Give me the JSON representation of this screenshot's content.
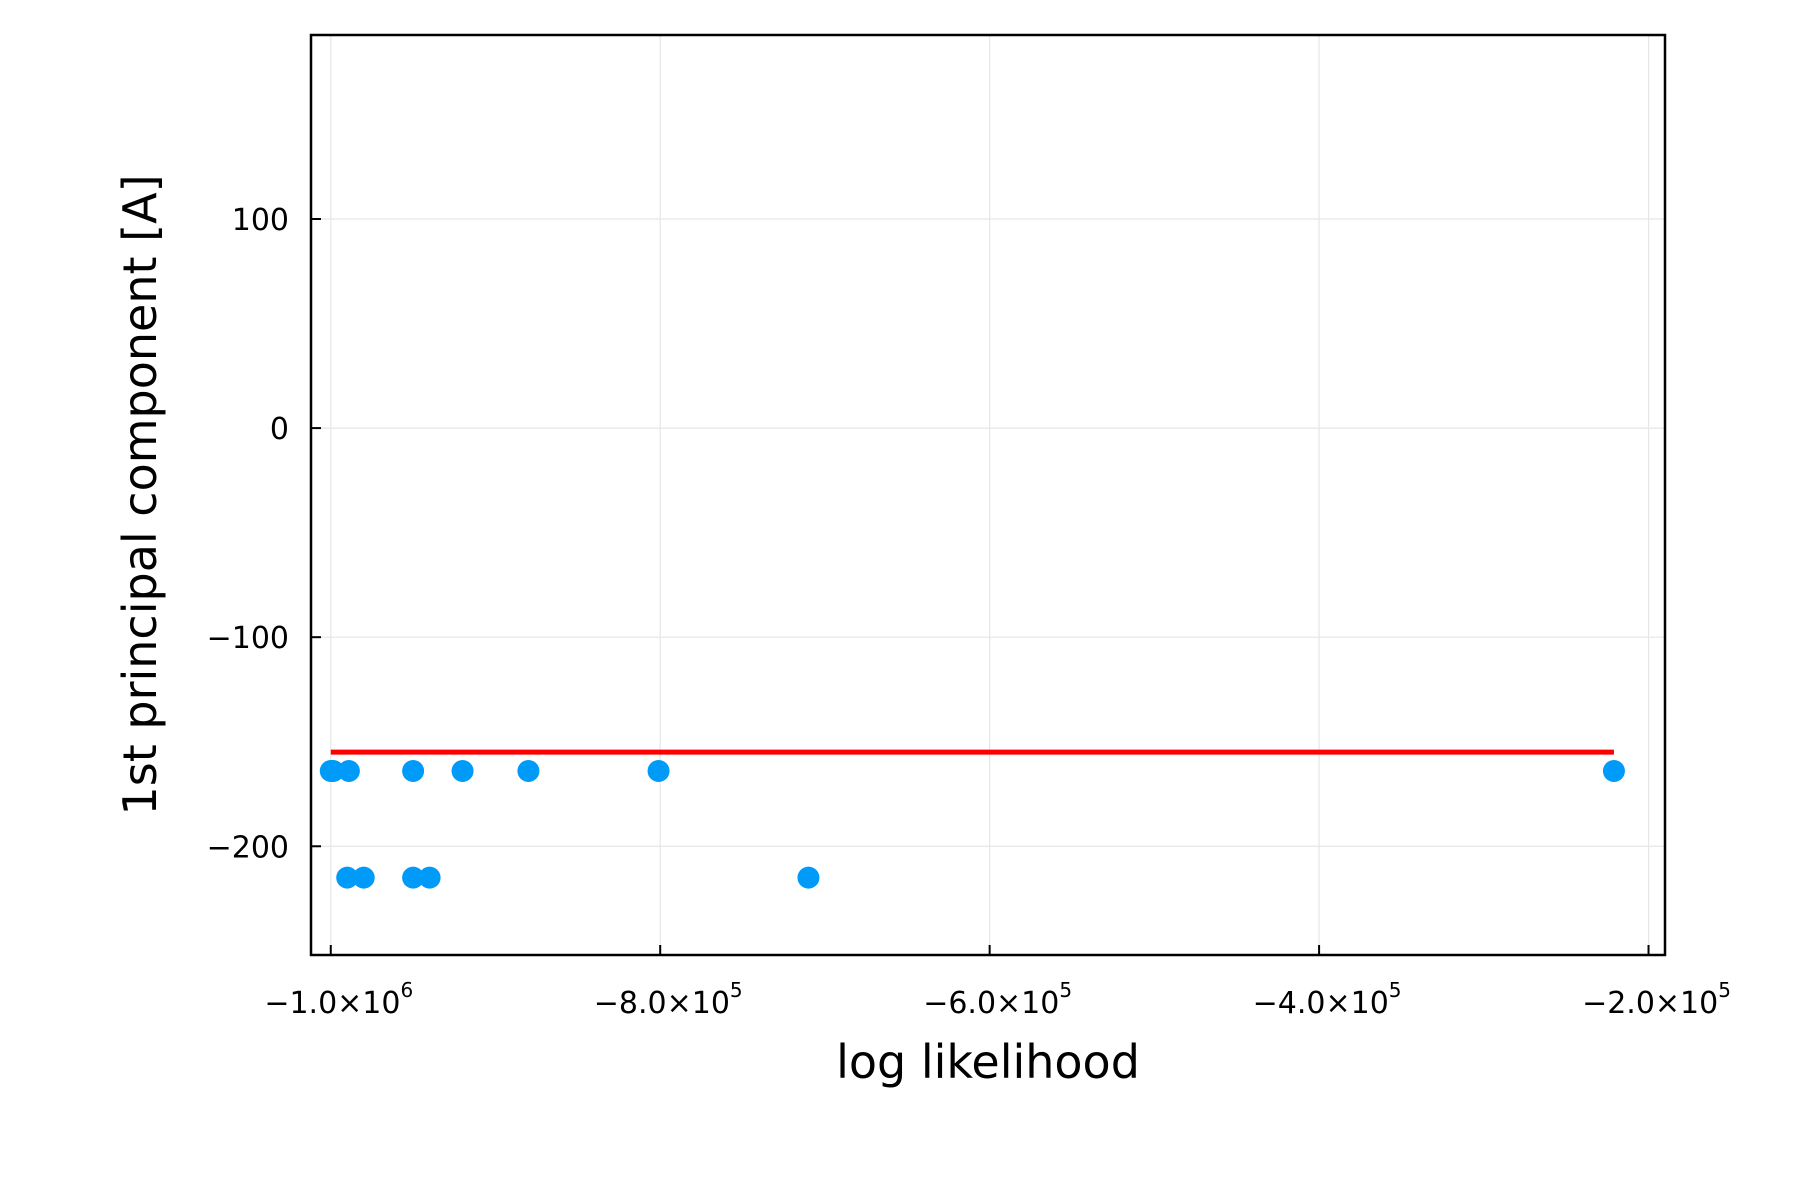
{
  "chart_data": {
    "type": "scatter",
    "title": "",
    "xlabel": "log likelihood",
    "ylabel": "1st principal component [A]",
    "xlim": [
      -1012000,
      -190000
    ],
    "ylim": [
      -252,
      188
    ],
    "grid": true,
    "legend": "none",
    "x_ticks": [
      {
        "value": -1000000,
        "mantissa": "−1.0×10",
        "exponent": "6"
      },
      {
        "value": -800000,
        "mantissa": "−8.0×10",
        "exponent": "5"
      },
      {
        "value": -600000,
        "mantissa": "−6.0×10",
        "exponent": "5"
      },
      {
        "value": -400000,
        "mantissa": "−4.0×10",
        "exponent": "5"
      },
      {
        "value": -200000,
        "mantissa": "−2.0×10",
        "exponent": "5"
      }
    ],
    "y_ticks": [
      {
        "value": 100,
        "label": "100"
      },
      {
        "value": 0,
        "label": "0"
      },
      {
        "value": -100,
        "label": "−100"
      },
      {
        "value": -200,
        "label": "−200"
      }
    ],
    "series": [
      {
        "kind": "scatter",
        "color": "#009af9",
        "points": [
          {
            "x": -1000000,
            "y": -164
          },
          {
            "x": -999000,
            "y": -164
          },
          {
            "x": -998500,
            "y": -164
          },
          {
            "x": -989000,
            "y": -164
          },
          {
            "x": -950000,
            "y": -164
          },
          {
            "x": -920000,
            "y": -164
          },
          {
            "x": -880000,
            "y": -164
          },
          {
            "x": -801000,
            "y": -164
          },
          {
            "x": -221000,
            "y": -164
          },
          {
            "x": -990000,
            "y": -215
          },
          {
            "x": -980000,
            "y": -215
          },
          {
            "x": -950000,
            "y": -215
          },
          {
            "x": -940000,
            "y": -215
          },
          {
            "x": -710000,
            "y": -215
          }
        ]
      },
      {
        "kind": "line",
        "color": "#ff0000",
        "points": [
          {
            "x": -1000000,
            "y": -155
          },
          {
            "x": -221000,
            "y": -155
          }
        ]
      }
    ]
  }
}
